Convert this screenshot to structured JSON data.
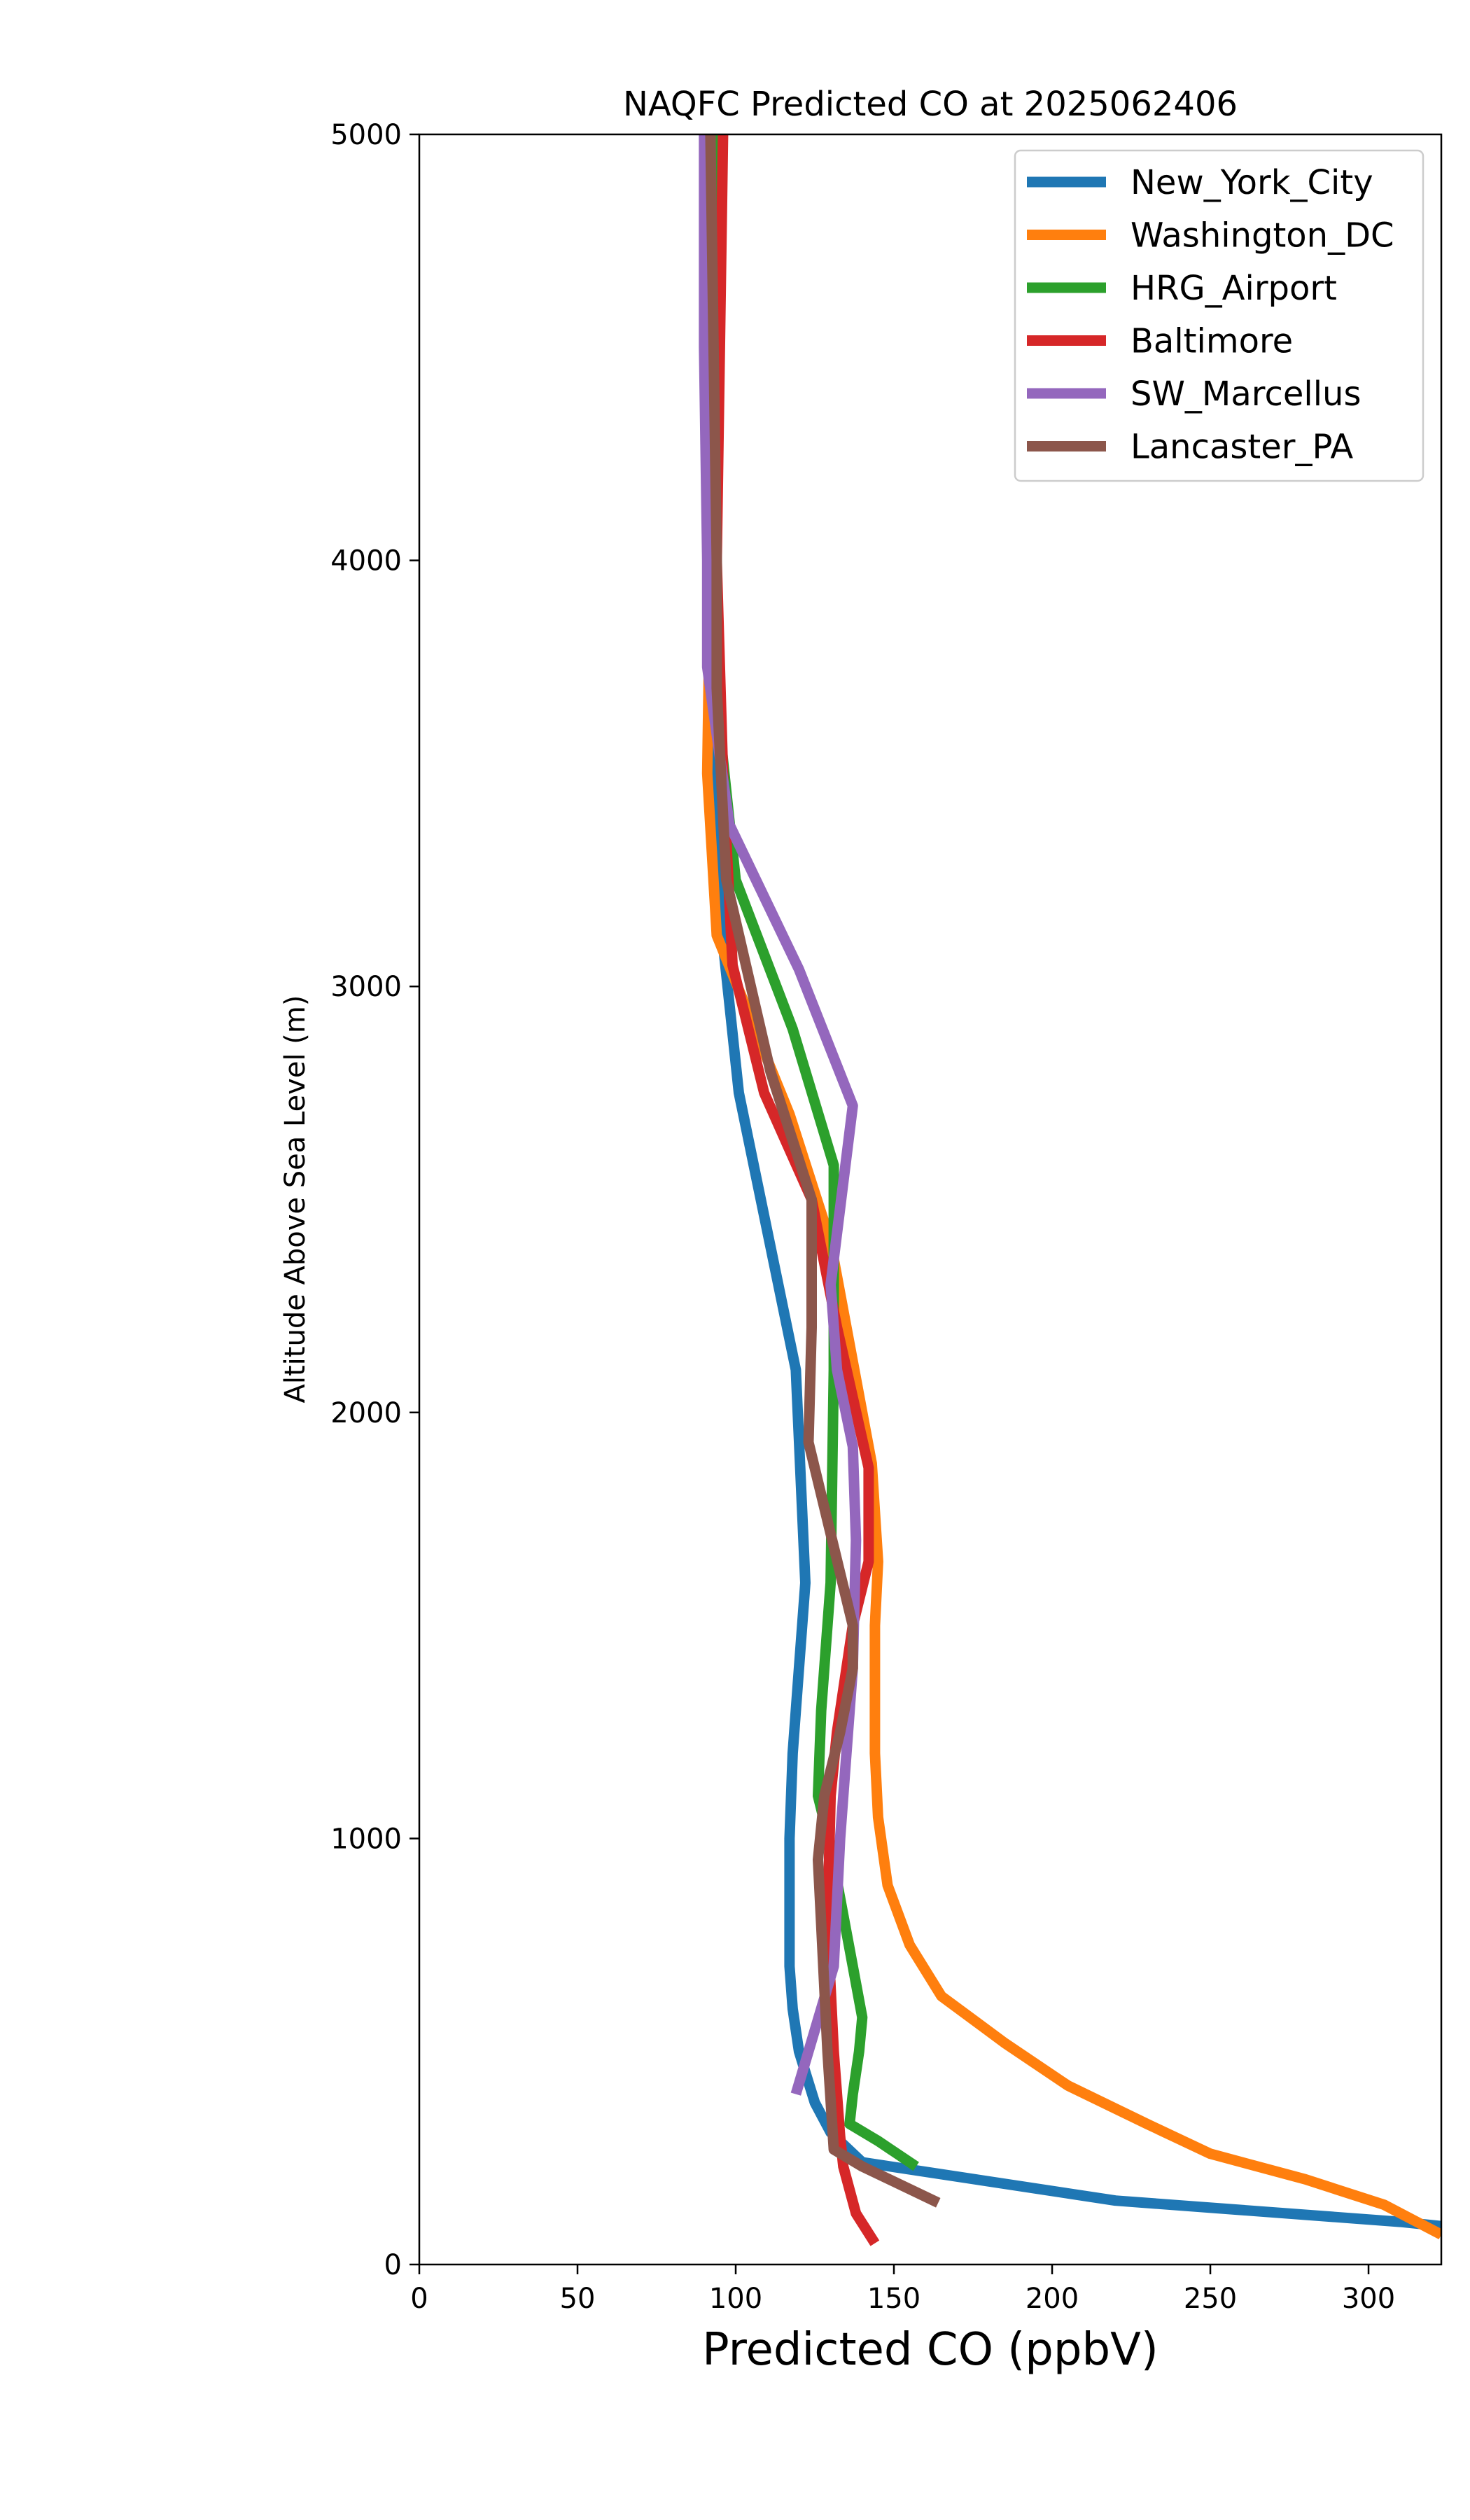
{
  "chart_data": {
    "type": "line",
    "title": "NAQFC Predicted CO at 2025062406",
    "xlabel": "Predicted CO (ppbV)",
    "ylabel": "Altitude Above Sea Level (m)",
    "xlim": [
      0,
      323
    ],
    "ylim": [
      0,
      5000
    ],
    "x_ticks": [
      0,
      50,
      100,
      150,
      200,
      250,
      300
    ],
    "y_ticks": [
      0,
      1000,
      2000,
      3000,
      4000,
      5000
    ],
    "grid": false,
    "legend_position": "top-right",
    "series": [
      {
        "name": "New_York_City",
        "color": "#1f77b4",
        "points": [
          [
            323,
            90
          ],
          [
            310,
            100
          ],
          [
            220,
            150
          ],
          [
            140,
            240
          ],
          [
            130,
            310
          ],
          [
            125,
            380
          ],
          [
            120,
            500
          ],
          [
            118,
            600
          ],
          [
            117,
            700
          ],
          [
            117,
            1000
          ],
          [
            118,
            1200
          ],
          [
            120,
            1400
          ],
          [
            122,
            1600
          ],
          [
            119,
            2100
          ],
          [
            101,
            2750
          ],
          [
            96,
            3100
          ],
          [
            93,
            3500
          ],
          [
            92,
            4000
          ],
          [
            92,
            4500
          ],
          [
            93,
            5000
          ]
        ]
      },
      {
        "name": "Washington_DC",
        "color": "#ff7f0e",
        "points": [
          [
            323,
            70
          ],
          [
            305,
            140
          ],
          [
            280,
            200
          ],
          [
            250,
            260
          ],
          [
            230,
            330
          ],
          [
            205,
            420
          ],
          [
            185,
            520
          ],
          [
            165,
            630
          ],
          [
            155,
            750
          ],
          [
            148,
            890
          ],
          [
            145,
            1050
          ],
          [
            144,
            1200
          ],
          [
            144,
            1500
          ],
          [
            145,
            1650
          ],
          [
            143,
            1880
          ],
          [
            130,
            2400
          ],
          [
            117,
            2700
          ],
          [
            94,
            3120
          ],
          [
            91,
            3500
          ],
          [
            92,
            4000
          ],
          [
            93,
            4500
          ],
          [
            93,
            5000
          ]
        ]
      },
      {
        "name": "HRG_Airport",
        "color": "#2ca02c",
        "points": [
          [
            157,
            230
          ],
          [
            145,
            290
          ],
          [
            136,
            330
          ],
          [
            137,
            400
          ],
          [
            139,
            500
          ],
          [
            140,
            580
          ],
          [
            137,
            700
          ],
          [
            130,
            980
          ],
          [
            126,
            1100
          ],
          [
            127,
            1300
          ],
          [
            130,
            1600
          ],
          [
            131,
            2100
          ],
          [
            131,
            2580
          ],
          [
            118,
            2900
          ],
          [
            100,
            3250
          ],
          [
            95,
            3600
          ],
          [
            93,
            4000
          ],
          [
            94,
            4500
          ],
          [
            95,
            5000
          ]
        ]
      },
      {
        "name": "Baltimore",
        "color": "#d62728",
        "points": [
          [
            144,
            50
          ],
          [
            138,
            120
          ],
          [
            134,
            230
          ],
          [
            133,
            300
          ],
          [
            131,
            500
          ],
          [
            129,
            800
          ],
          [
            130,
            1100
          ],
          [
            132,
            1250
          ],
          [
            137,
            1500
          ],
          [
            142,
            1650
          ],
          [
            142,
            1870
          ],
          [
            132,
            2200
          ],
          [
            124,
            2500
          ],
          [
            109,
            2750
          ],
          [
            99,
            3050
          ],
          [
            96,
            3500
          ],
          [
            94,
            4000
          ],
          [
            95,
            4500
          ],
          [
            96,
            5000
          ]
        ]
      },
      {
        "name": "SW_Marcellus",
        "color": "#9467bd",
        "points": [
          [
            119,
            400
          ],
          [
            125,
            550
          ],
          [
            131,
            700
          ],
          [
            133,
            1000
          ],
          [
            135,
            1200
          ],
          [
            137,
            1400
          ],
          [
            138,
            1700
          ],
          [
            137,
            1920
          ],
          [
            132,
            2100
          ],
          [
            130,
            2300
          ],
          [
            137,
            2720
          ],
          [
            120,
            3040
          ],
          [
            98,
            3380
          ],
          [
            91,
            3750
          ],
          [
            91,
            4000
          ],
          [
            90,
            4500
          ],
          [
            90,
            5000
          ]
        ]
      },
      {
        "name": "Lancaster_PA",
        "color": "#8c564b",
        "points": [
          [
            164,
            145
          ],
          [
            140,
            230
          ],
          [
            131,
            270
          ],
          [
            129,
            500
          ],
          [
            127,
            800
          ],
          [
            126,
            950
          ],
          [
            128,
            1100
          ],
          [
            133,
            1250
          ],
          [
            137,
            1400
          ],
          [
            137,
            1500
          ],
          [
            123,
            1930
          ],
          [
            124,
            2200
          ],
          [
            124,
            2500
          ],
          [
            111,
            2800
          ],
          [
            97,
            3250
          ],
          [
            94,
            3700
          ],
          [
            94,
            4000
          ],
          [
            93,
            4500
          ],
          [
            92,
            5000
          ]
        ]
      }
    ]
  }
}
